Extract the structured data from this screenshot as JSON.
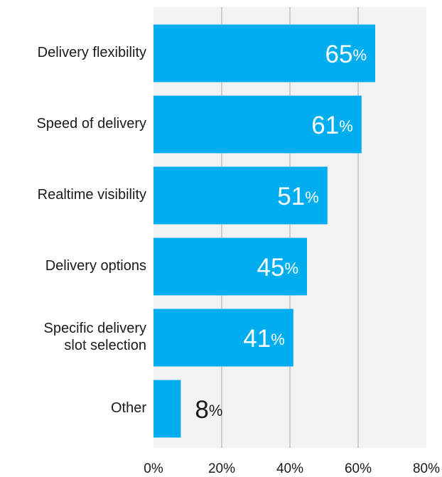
{
  "chart_data": {
    "type": "bar",
    "orientation": "horizontal",
    "categories": [
      "Delivery flexibility",
      "Speed of delivery",
      "Realtime visibility",
      "Delivery options",
      "Specific delivery\nslot selection",
      "Other"
    ],
    "values": [
      65,
      61,
      51,
      45,
      41,
      8
    ],
    "value_labels": [
      "65%",
      "61%",
      "51%",
      "45%",
      "41%",
      "8%"
    ],
    "color": "#00aeef",
    "xlim": [
      0,
      80
    ],
    "xticks": [
      {
        "value": 0,
        "label": "0%"
      },
      {
        "value": 20,
        "label": "20%"
      },
      {
        "value": 40,
        "label": "40%"
      },
      {
        "value": 60,
        "label": "60%"
      },
      {
        "value": 80,
        "label": "80%"
      }
    ],
    "grid": true
  }
}
